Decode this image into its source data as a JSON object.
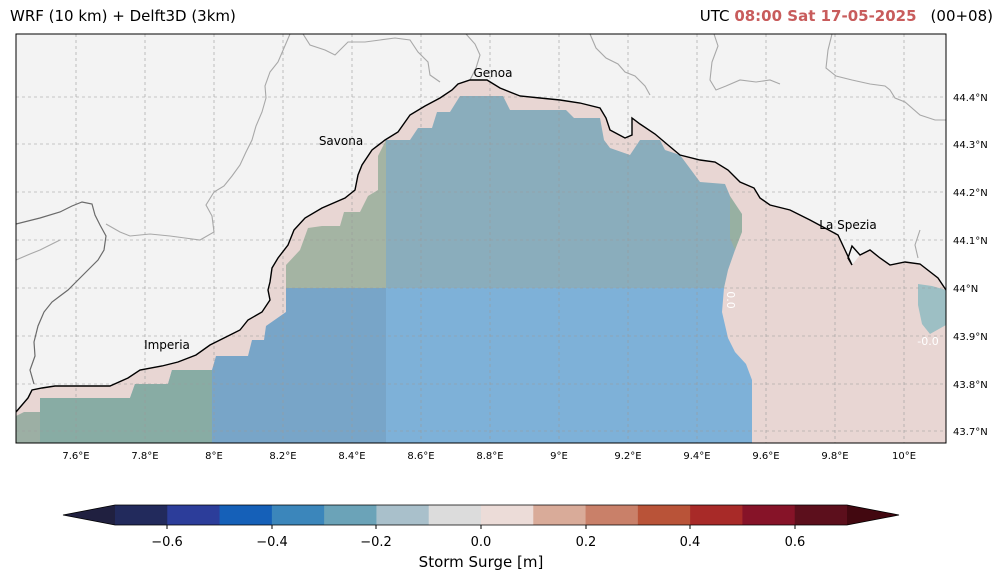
{
  "title": {
    "left": "WRF (10 km) + Delft3D (3km)",
    "utc_label": "UTC",
    "datetime": "08:00 Sat 17-05-2025",
    "lead": "(00+08)"
  },
  "map": {
    "lon_ticks": [
      "7.6°E",
      "7.8°E",
      "8°E",
      "8.2°E",
      "8.4°E",
      "8.6°E",
      "8.8°E",
      "9°E",
      "9.2°E",
      "9.4°E",
      "9.6°E",
      "9.8°E",
      "10°E"
    ],
    "lat_ticks": [
      "44.4°N",
      "44.3°N",
      "44.2°N",
      "44.1°N",
      "44°N",
      "43.9°N",
      "43.8°N",
      "43.7°N"
    ],
    "places": [
      "Genoa",
      "Savona",
      "La Spezia",
      "Imperia"
    ],
    "contour_labels": [
      "0.0",
      "-0.0"
    ],
    "colors": {
      "land": "#f3f3f3",
      "coast_fill": "#e8d6d3",
      "field_main": "#86abbb",
      "field_south": "#7eb1d8",
      "field_west": "#78a5c8",
      "field_green": "#9cb09d"
    }
  },
  "colorbar": {
    "label": "Storm Surge [m]",
    "ticks": [
      "−0.6",
      "−0.4",
      "−0.2",
      "0.0",
      "0.2",
      "0.4",
      "0.6"
    ],
    "bins": [
      "#222a5c",
      "#2c3d9a",
      "#1560b8",
      "#3b86bb",
      "#6ba3b8",
      "#a9c0cb",
      "#dcdcdc",
      "#ecdcd8",
      "#d9ab99",
      "#c98069",
      "#b95338",
      "#a82a28",
      "#861328",
      "#5c0f1c"
    ],
    "extend_low": "#202040",
    "extend_high": "#420810"
  }
}
